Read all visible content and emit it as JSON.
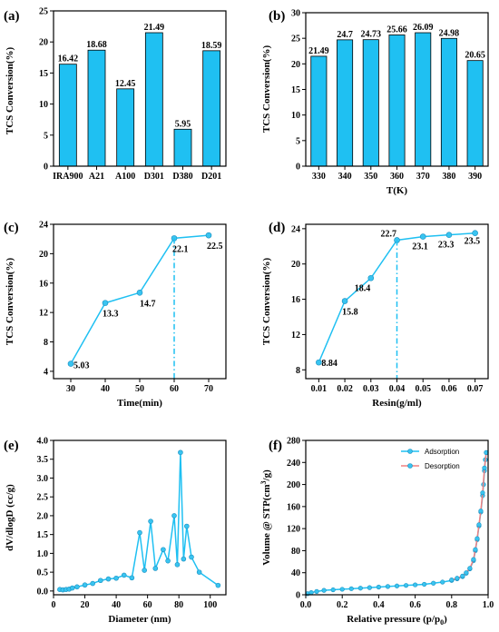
{
  "colors": {
    "bar": "#1fc0f2",
    "line": "#1fc0f2",
    "marker": "#39c4f0",
    "desorption_line": "#f08080",
    "axis": "#000000"
  },
  "chart_data": [
    {
      "id": "a",
      "panel_label": "(a)",
      "type": "bar",
      "categories": [
        "IRA900",
        "A21",
        "A100",
        "D301",
        "D380",
        "D201"
      ],
      "values": [
        16.42,
        18.68,
        12.45,
        21.49,
        5.95,
        18.59
      ],
      "value_labels": [
        "16.42",
        "18.68",
        "12.45",
        "21.49",
        "5.95",
        "18.59"
      ],
      "xlabel": "",
      "ylabel": "TCS Conversion(%)",
      "ylim": [
        0,
        25
      ],
      "yticks": [
        "0",
        "5",
        "10",
        "15",
        "20",
        "25"
      ],
      "grid": false
    },
    {
      "id": "b",
      "panel_label": "(b)",
      "type": "bar",
      "categories": [
        "330",
        "340",
        "350",
        "360",
        "370",
        "380",
        "390"
      ],
      "values": [
        21.49,
        24.7,
        24.73,
        25.66,
        26.09,
        24.98,
        20.65
      ],
      "value_labels": [
        "21.49",
        "24.7",
        "24.73",
        "25.66",
        "26.09",
        "24.98",
        "20.65"
      ],
      "xlabel": "T(K)",
      "ylabel": "TCS Conversion(%)",
      "ylim": [
        0,
        30
      ],
      "yticks": [
        "0",
        "5",
        "10",
        "15",
        "20",
        "25",
        "30"
      ],
      "grid": false
    },
    {
      "id": "c",
      "panel_label": "(c)",
      "type": "line",
      "x": [
        30,
        40,
        50,
        60,
        70
      ],
      "y": [
        5.03,
        13.3,
        14.7,
        22.1,
        22.5
      ],
      "value_labels": [
        "5.03",
        "13.3",
        "14.7",
        "22.1",
        "22.5"
      ],
      "xlabel": "Time(min)",
      "ylabel": "TCS Conversion(%)",
      "xlim": [
        25,
        75
      ],
      "ylim": [
        3,
        24
      ],
      "xticks": [
        "30",
        "40",
        "50",
        "60",
        "70"
      ],
      "yticks": [
        "4",
        "8",
        "12",
        "16",
        "20",
        "24"
      ],
      "marker_line_x": 60,
      "grid": false
    },
    {
      "id": "d",
      "panel_label": "(d)",
      "type": "line",
      "x": [
        0.01,
        0.02,
        0.03,
        0.04,
        0.05,
        0.06,
        0.07
      ],
      "y": [
        8.84,
        15.8,
        18.4,
        22.7,
        23.1,
        23.3,
        23.5
      ],
      "value_labels": [
        "8.84",
        "15.8",
        "18.4",
        "22.7",
        "23.1",
        "23.3",
        "23.5"
      ],
      "xlabel": "Resin(g/ml)",
      "ylabel": "TCS Conversion(%)",
      "xlim": [
        0.005,
        0.075
      ],
      "ylim": [
        7,
        24.5
      ],
      "xticks": [
        "0.01",
        "0.02",
        "0.03",
        "0.04",
        "0.05",
        "0.06",
        "0.07"
      ],
      "yticks": [
        "8",
        "12",
        "16",
        "20",
        "24"
      ],
      "marker_line_x": 0.04,
      "grid": false
    },
    {
      "id": "e",
      "panel_label": "(e)",
      "type": "line",
      "x": [
        4,
        6,
        8,
        10,
        12,
        15,
        20,
        25,
        30,
        35,
        40,
        45,
        50,
        55,
        58,
        62,
        65,
        70,
        73,
        77,
        79,
        81,
        83,
        85,
        88,
        93,
        105
      ],
      "y": [
        0.04,
        0.03,
        0.04,
        0.05,
        0.08,
        0.11,
        0.16,
        0.2,
        0.28,
        0.32,
        0.34,
        0.42,
        0.35,
        1.55,
        0.55,
        1.85,
        0.6,
        1.1,
        0.8,
        2.0,
        0.7,
        3.68,
        0.85,
        1.72,
        0.9,
        0.5,
        0.15
      ],
      "xlabel": "Diameter (nm)",
      "ylabel": "dV/dlogD (cc/g)",
      "xlim": [
        0,
        110
      ],
      "ylim": [
        -0.1,
        4.0
      ],
      "xticks": [
        "0",
        "20",
        "40",
        "60",
        "80",
        "100"
      ],
      "yticks": [
        "0.0",
        "0.5",
        "1.0",
        "1.5",
        "2.0",
        "2.5",
        "3.0",
        "3.5",
        "4.0"
      ],
      "grid": false
    },
    {
      "id": "f",
      "panel_label": "(f)",
      "type": "line",
      "series": [
        {
          "name": "Adsorption",
          "x": [
            0.01,
            0.03,
            0.06,
            0.1,
            0.15,
            0.2,
            0.25,
            0.3,
            0.35,
            0.4,
            0.45,
            0.5,
            0.55,
            0.6,
            0.65,
            0.7,
            0.75,
            0.8,
            0.83,
            0.86,
            0.88,
            0.9,
            0.92,
            0.93,
            0.94,
            0.95,
            0.96,
            0.97,
            0.975,
            0.98,
            0.985,
            0.99
          ],
          "y": [
            2,
            4,
            6,
            8,
            9,
            10,
            11,
            12,
            13,
            14,
            15,
            16,
            17,
            18,
            19,
            21,
            23,
            26,
            29,
            33,
            39,
            47,
            62,
            80,
            100,
            125,
            150,
            180,
            200,
            225,
            245,
            258
          ]
        },
        {
          "name": "Desorption",
          "x": [
            0.99,
            0.98,
            0.97,
            0.96,
            0.95,
            0.94,
            0.93,
            0.92,
            0.9,
            0.88,
            0.86,
            0.83,
            0.8
          ],
          "y": [
            258,
            230,
            185,
            152,
            127,
            102,
            82,
            64,
            48,
            40,
            34,
            30,
            27
          ]
        }
      ],
      "xlabel": "Relative pressure (p/p",
      "xlabel_sub": "0",
      "xlabel_end": ")",
      "ylabel": "Volume @ STP(cm",
      "ylabel_sup": "3",
      "ylabel_end": "/g)",
      "xlim": [
        0,
        1.0
      ],
      "ylim": [
        0,
        280
      ],
      "xticks": [
        "0.0",
        "0.2",
        "0.4",
        "0.6",
        "0.8",
        "1.0"
      ],
      "yticks": [
        "0",
        "40",
        "80",
        "120",
        "160",
        "200",
        "240",
        "280"
      ],
      "legend": [
        "Adsorption",
        "Desorption"
      ],
      "legend_position": "top-right",
      "grid": false
    }
  ]
}
